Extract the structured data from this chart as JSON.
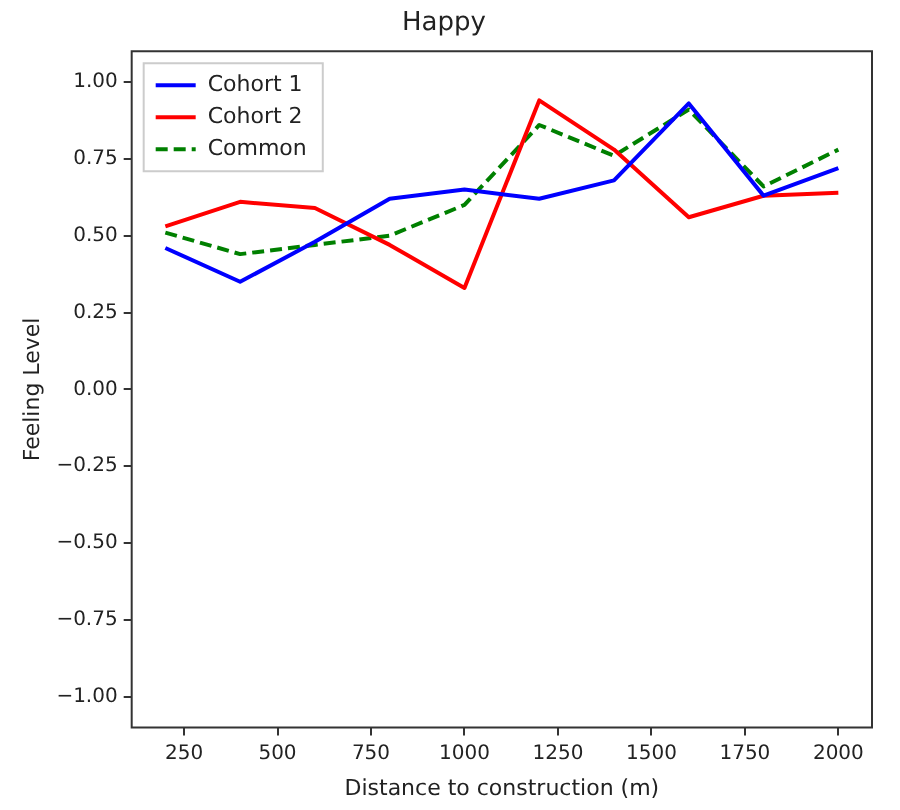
{
  "chart_data": {
    "type": "line",
    "title": "Happy",
    "xlabel": "Distance to construction (m)",
    "ylabel": "Feeling Level",
    "x": [
      200,
      400,
      600,
      800,
      1000,
      1200,
      1400,
      1600,
      1800,
      2000
    ],
    "series": [
      {
        "name": "Cohort 1",
        "color": "#0000ff",
        "values": [
          0.46,
          0.35,
          0.48,
          0.62,
          0.65,
          0.62,
          0.68,
          0.93,
          0.63,
          0.72
        ]
      },
      {
        "name": "Cohort 2",
        "color": "#ff0000",
        "values": [
          0.53,
          0.61,
          0.59,
          0.47,
          0.33,
          0.94,
          0.78,
          0.56,
          0.63,
          0.64
        ]
      },
      {
        "name": "Common",
        "color": "#008000",
        "line_style": "dashed",
        "values": [
          0.51,
          0.44,
          0.47,
          0.5,
          0.6,
          0.86,
          0.76,
          0.91,
          0.66,
          0.78
        ]
      }
    ],
    "xlim": [
      110,
      2090
    ],
    "xticks": [
      250,
      500,
      750,
      1000,
      1250,
      1500,
      1750,
      2000
    ],
    "ylim": [
      -1.1,
      1.1
    ],
    "yticks": [
      {
        "value": -1,
        "label": "−1.00"
      },
      {
        "value": -0.75,
        "label": "−0.75"
      },
      {
        "value": -0.5,
        "label": "−0.50"
      },
      {
        "value": -0.25,
        "label": "−0.25"
      },
      {
        "value": 0,
        "label": "0.00"
      },
      {
        "value": 0.25,
        "label": "0.25"
      },
      {
        "value": 0.5,
        "label": "0.50"
      },
      {
        "value": 0.75,
        "label": "0.75"
      },
      {
        "value": 1,
        "label": "1.00"
      }
    ],
    "grid": false,
    "legend": "top left",
    "marker": "none"
  }
}
